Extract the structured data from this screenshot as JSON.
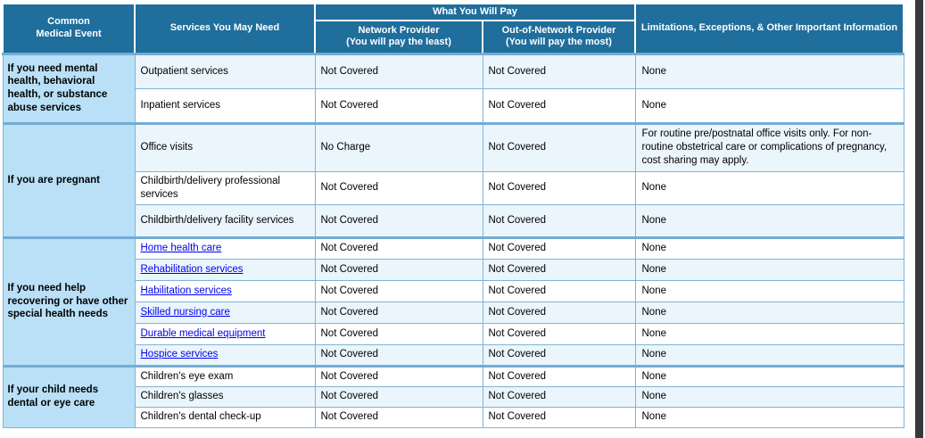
{
  "header": {
    "col_event": "Common\nMedical Event",
    "col_services": "Services You May Need",
    "col_pay_group": "What You Will Pay",
    "col_network": "Network Provider\n(You will pay the least)",
    "col_oon": "Out-of-Network Provider\n(You will pay the most)",
    "col_limitations": "Limitations, Exceptions, & Other Important Information"
  },
  "sections": [
    {
      "id": "mental-health",
      "event": "If you need mental health, behavioral health, or substance abuse services",
      "rows": [
        {
          "service": "Outpatient services",
          "link": false,
          "network": "Not Covered",
          "oon": "Not Covered",
          "limitations": "None"
        },
        {
          "service": "Inpatient services",
          "link": false,
          "network": "Not Covered",
          "oon": "Not Covered",
          "limitations": "None"
        }
      ]
    },
    {
      "id": "pregnancy",
      "event": "If you are pregnant",
      "rows": [
        {
          "service": "Office visits",
          "link": false,
          "network": "No Charge",
          "oon": "Not Covered",
          "limitations": "For routine pre/postnatal office visits only.  For non-routine obstetrical care or complications of pregnancy, cost sharing may apply."
        },
        {
          "service": "Childbirth/delivery professional services",
          "link": false,
          "network": "Not Covered",
          "oon": "Not Covered",
          "limitations": "None"
        },
        {
          "service": "Childbirth/delivery facility services",
          "link": false,
          "network": "Not Covered",
          "oon": "Not Covered",
          "limitations": "None"
        }
      ]
    },
    {
      "id": "recovery",
      "event": "If you need help recovering or have other special health needs",
      "rows": [
        {
          "service": "Home health care",
          "link": true,
          "network": "Not Covered",
          "oon": "Not Covered",
          "limitations": "None"
        },
        {
          "service": "Rehabilitation services",
          "link": true,
          "network": "Not Covered",
          "oon": "Not Covered",
          "limitations": "None"
        },
        {
          "service": "Habilitation services",
          "link": true,
          "network": "Not Covered",
          "oon": "Not Covered",
          "limitations": "None"
        },
        {
          "service": "Skilled nursing care",
          "link": true,
          "network": "Not Covered",
          "oon": "Not Covered",
          "limitations": "None"
        },
        {
          "service": "Durable medical equipment",
          "link": true,
          "network": "Not Covered",
          "oon": "Not Covered",
          "limitations": "None"
        },
        {
          "service": "Hospice services",
          "link": true,
          "network": "Not Covered",
          "oon": "Not Covered",
          "limitations": "None"
        }
      ]
    },
    {
      "id": "child-dental-eye",
      "event": "If your child needs dental or eye care",
      "rows": [
        {
          "service": "Children's eye exam",
          "link": false,
          "network": "Not Covered",
          "oon": "Not Covered",
          "limitations": "None"
        },
        {
          "service": "Children's glasses",
          "link": false,
          "network": "Not Covered",
          "oon": "Not Covered",
          "limitations": "None"
        },
        {
          "service": "Children's dental check-up",
          "link": false,
          "network": "Not Covered",
          "oon": "Not Covered",
          "limitations": "None"
        }
      ]
    }
  ],
  "colors": {
    "header_bg": "#1F6E9B",
    "header_text": "#FFFFFF",
    "event_column_bg": "#B9E0F6",
    "row_tint": "#EBF5FC",
    "cell_border": "#7FB3D8",
    "section_border": "#74ACD4",
    "link": "#0000EE",
    "edge_bar": "#39393B"
  }
}
